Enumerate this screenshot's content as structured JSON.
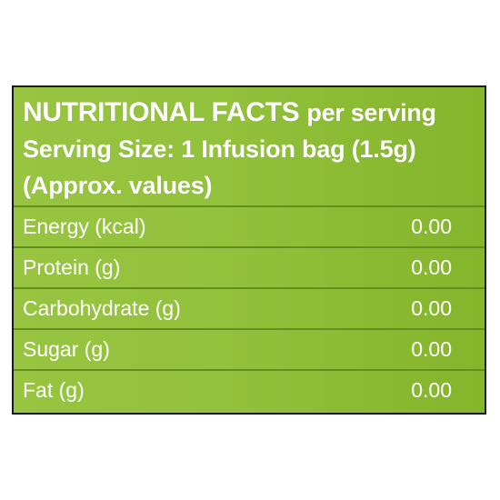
{
  "header": {
    "title": "NUTRITIONAL FACTS",
    "title_suffix": "per serving",
    "serving_size": "Serving Size: 1 Infusion bag (1.5g)",
    "note": "(Approx. values)"
  },
  "colors": {
    "panel_green": "#92c13b",
    "divider_green": "#5f8f1c",
    "text": "#ffffff",
    "border": "#1b1b1b"
  },
  "nutrients": [
    {
      "label": "Energy (kcal)",
      "value": "0.00"
    },
    {
      "label": "Protein (g)",
      "value": "0.00"
    },
    {
      "label": "Carbohydrate (g)",
      "value": "0.00"
    },
    {
      "label": "Sugar (g)",
      "value": "0.00"
    },
    {
      "label": "Fat (g)",
      "value": "0.00"
    }
  ]
}
